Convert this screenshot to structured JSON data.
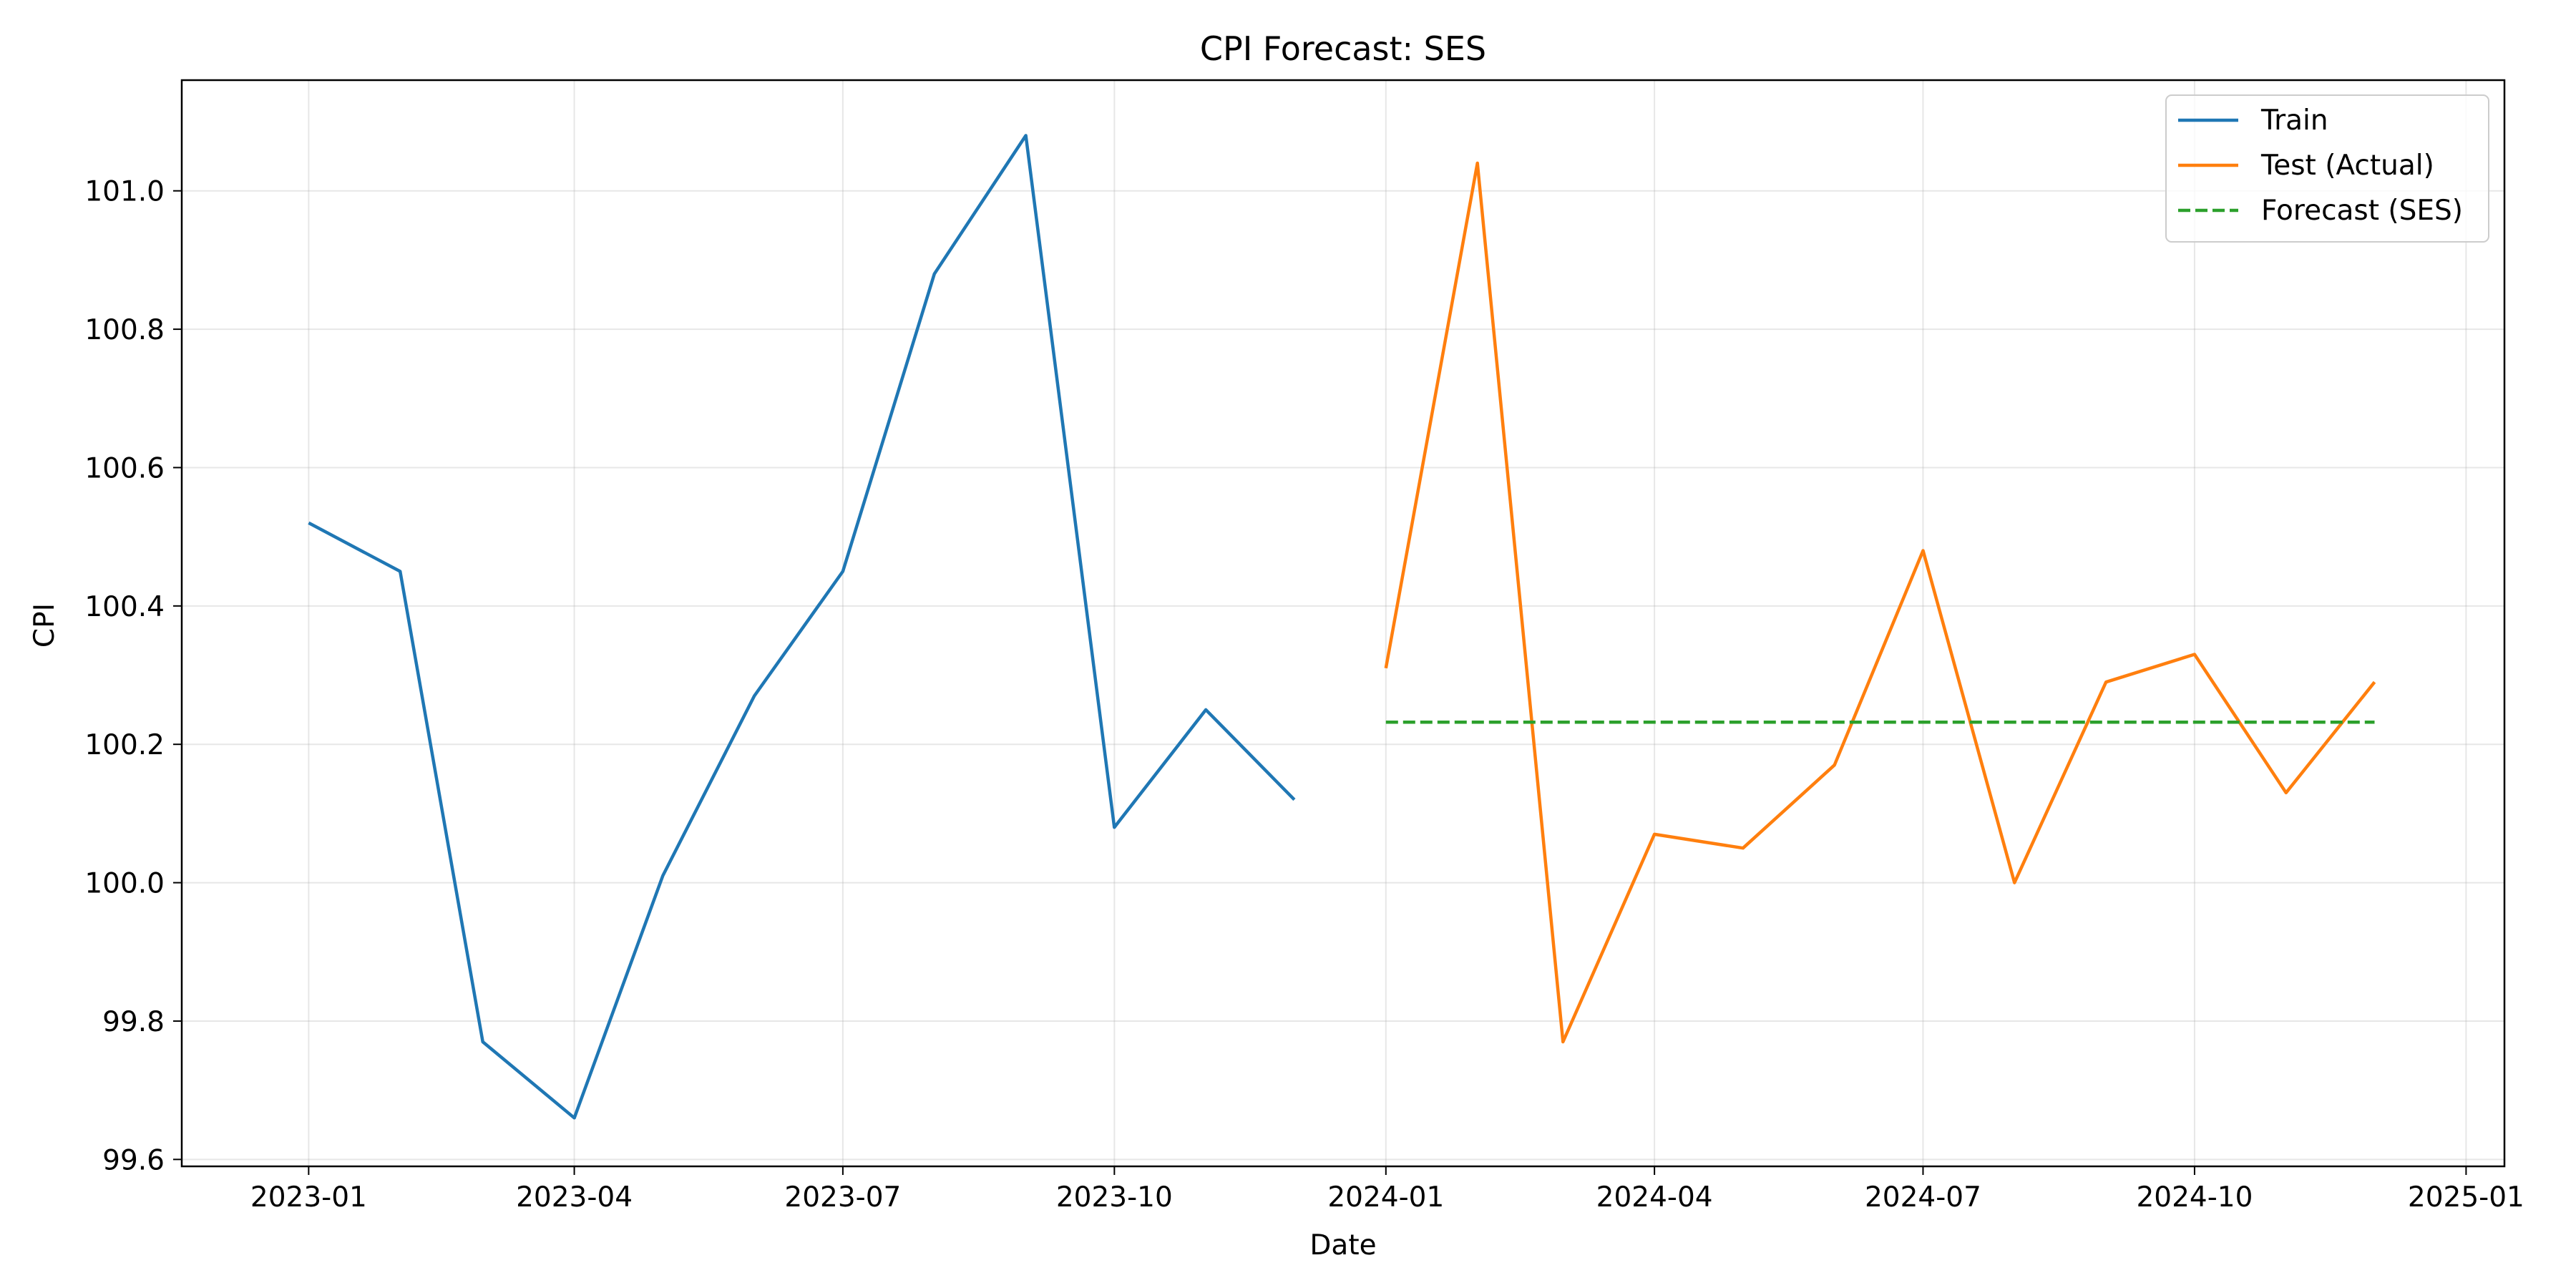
{
  "chart_data": {
    "type": "line",
    "title": "CPI Forecast: SES",
    "xlabel": "Date",
    "ylabel": "CPI",
    "xlim": [
      "2022-11-19",
      "2025-01-14"
    ],
    "ylim": [
      99.59,
      101.16
    ],
    "x_ticks": [
      "2023-01",
      "2023-04",
      "2023-07",
      "2023-10",
      "2024-01",
      "2024-04",
      "2024-07",
      "2024-10",
      "2025-01"
    ],
    "y_ticks": [
      99.6,
      99.8,
      100.0,
      100.2,
      100.4,
      100.6,
      100.8,
      101.0
    ],
    "grid": true,
    "legend_position": "top-right",
    "series": [
      {
        "name": "Train",
        "color": "#1f77b4",
        "style": "solid",
        "x": [
          "2023-01",
          "2023-02",
          "2023-03",
          "2023-04",
          "2023-05",
          "2023-06",
          "2023-07",
          "2023-08",
          "2023-09",
          "2023-10",
          "2023-11",
          "2023-12"
        ],
        "values": [
          100.52,
          100.45,
          99.77,
          99.66,
          100.01,
          100.27,
          100.45,
          100.88,
          101.08,
          100.08,
          100.25,
          100.12
        ]
      },
      {
        "name": "Test (Actual)",
        "color": "#ff7f0e",
        "style": "solid",
        "x": [
          "2024-01",
          "2024-02",
          "2024-03",
          "2024-04",
          "2024-05",
          "2024-06",
          "2024-07",
          "2024-08",
          "2024-09",
          "2024-10",
          "2024-11",
          "2024-12"
        ],
        "values": [
          100.31,
          101.04,
          99.77,
          100.07,
          100.05,
          100.17,
          100.48,
          100.0,
          100.29,
          100.33,
          100.13,
          100.29
        ]
      },
      {
        "name": "Forecast (SES)",
        "color": "#2ca02c",
        "style": "dashed",
        "x": [
          "2024-01",
          "2024-02",
          "2024-03",
          "2024-04",
          "2024-05",
          "2024-06",
          "2024-07",
          "2024-08",
          "2024-09",
          "2024-10",
          "2024-11",
          "2024-12"
        ],
        "values": [
          100.232,
          100.232,
          100.232,
          100.232,
          100.232,
          100.232,
          100.232,
          100.232,
          100.232,
          100.232,
          100.232,
          100.232
        ]
      }
    ]
  }
}
